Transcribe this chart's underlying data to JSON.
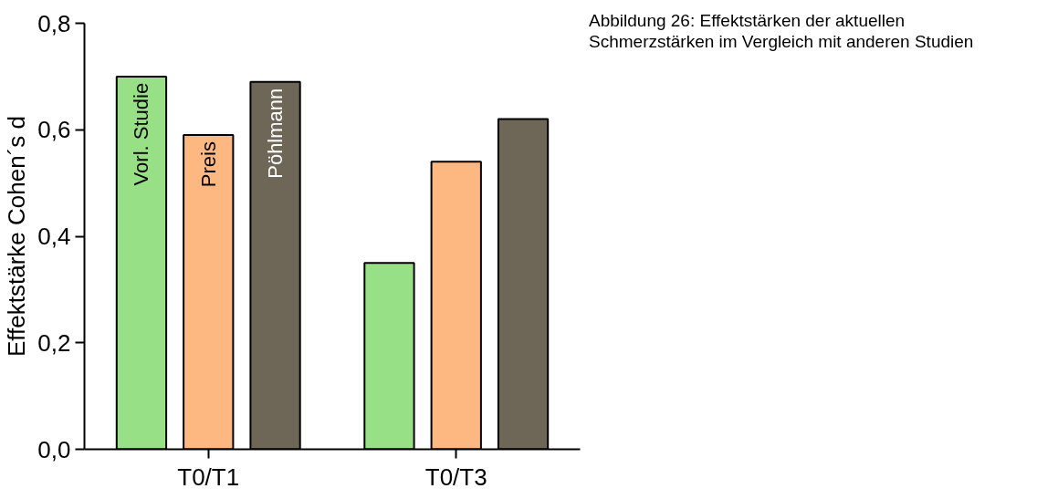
{
  "chart_data": {
    "type": "bar",
    "ylabel": "Effektstärke Cohen´s d",
    "categories": [
      "T0/T1",
      "T0/T3"
    ],
    "series": [
      {
        "name": "Vorl. Studie",
        "color": "#98e086",
        "values": [
          0.7,
          0.35
        ]
      },
      {
        "name": "Preis",
        "color": "#fdb882",
        "values": [
          0.59,
          0.54
        ]
      },
      {
        "name": "Pöhlmann",
        "color": "#6e6757",
        "values": [
          0.69,
          0.62
        ]
      }
    ],
    "ylim": [
      0,
      0.8
    ],
    "yticks": [
      {
        "value": 0,
        "label": "0,0"
      },
      {
        "value": 0.2,
        "label": "0,2"
      },
      {
        "value": 0.4,
        "label": "0,4"
      },
      {
        "value": 0.6,
        "label": "0,6"
      },
      {
        "value": 0.8,
        "label": "0,8"
      }
    ],
    "grid": false,
    "annotations": [
      "Abbildung 26: Effektstärken der aktuellen Schmerzstärken im Vergleich mit anderen Studien"
    ]
  }
}
